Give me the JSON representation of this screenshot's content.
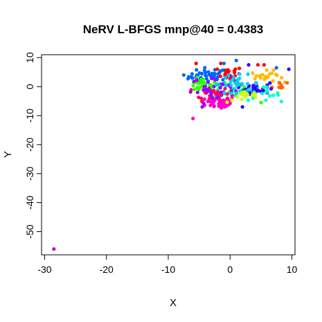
{
  "chart_data": {
    "type": "scatter",
    "title": "NeRV L-BFGS mnp@40 = 0.4383",
    "xlabel": "X",
    "ylabel": "Y",
    "xlim": [
      -30.5,
      10.5
    ],
    "ylim": [
      -58,
      11
    ],
    "x_ticks": [
      -30,
      -20,
      -10,
      0,
      10
    ],
    "x_tick_labels": [
      "-30",
      "-20",
      "-10",
      "0",
      "10"
    ],
    "y_ticks": [
      -50,
      -40,
      -30,
      -20,
      -10,
      0,
      10
    ],
    "y_tick_labels": [
      "-50",
      "-40",
      "-30",
      "-20",
      "-10",
      "0",
      "10"
    ],
    "grid": false,
    "legend": "none",
    "colors": [
      "#FF0000",
      "#FF6600",
      "#FFBB00",
      "#CCFF00",
      "#33FF00",
      "#00FF66",
      "#00FFCC",
      "#00CCFF",
      "#0066FF",
      "#3300FF",
      "#9900FF",
      "#FF00CC",
      "#FF0066"
    ],
    "clusters": [
      {
        "color": "#0066FF",
        "cx": -3.5,
        "cy": 3.5,
        "sx": 1.6,
        "sy": 1.5,
        "n": 45
      },
      {
        "color": "#FF0000",
        "cx": 0,
        "cy": 4.5,
        "sx": 1.0,
        "sy": 1.2,
        "n": 18
      },
      {
        "color": "#33FF00",
        "cx": -4.5,
        "cy": 0.5,
        "sx": 1.3,
        "sy": 1.2,
        "n": 30
      },
      {
        "color": "#00FF66",
        "cx": 1.5,
        "cy": -1.5,
        "sx": 2.0,
        "sy": 1.3,
        "n": 25
      },
      {
        "color": "#FF00CC",
        "cx": -1.5,
        "cy": -5.5,
        "sx": 1.2,
        "sy": 1.1,
        "n": 45
      },
      {
        "color": "#FF0066",
        "cx": -3,
        "cy": -2.5,
        "sx": 1.5,
        "sy": 1.2,
        "n": 28
      },
      {
        "color": "#FFBB00",
        "cx": 6,
        "cy": 3.5,
        "sx": 1.3,
        "sy": 1.0,
        "n": 22
      },
      {
        "color": "#FF6600",
        "cx": 8,
        "cy": 0.5,
        "sx": 0.6,
        "sy": 1.0,
        "n": 8
      },
      {
        "color": "#3300FF",
        "cx": 4,
        "cy": -0.5,
        "sx": 1.2,
        "sy": 1.0,
        "n": 30
      },
      {
        "color": "#9900FF",
        "cx": -2,
        "cy": -1,
        "sx": 2.2,
        "sy": 2.2,
        "n": 30
      },
      {
        "color": "#00CCFF",
        "cx": 1,
        "cy": 1,
        "sx": 2.0,
        "sy": 1.5,
        "n": 28
      },
      {
        "color": "#00FFCC",
        "cx": 5,
        "cy": -2.5,
        "sx": 1.5,
        "sy": 1.2,
        "n": 15
      },
      {
        "color": "#CCFF00",
        "cx": 2.5,
        "cy": -3.5,
        "sx": 1.5,
        "sy": 1.0,
        "n": 15
      }
    ],
    "extra_points": [
      {
        "x": -28.5,
        "y": -56,
        "color": "#CC00CC"
      },
      {
        "x": -6,
        "y": -11,
        "color": "#FF00CC"
      },
      {
        "x": 9.5,
        "y": 6,
        "color": "#3300FF"
      },
      {
        "x": -7.5,
        "y": 4,
        "color": "#0066FF"
      },
      {
        "x": -1,
        "y": 8,
        "color": "#0066FF"
      },
      {
        "x": 1,
        "y": 9,
        "color": "#0066FF"
      },
      {
        "x": -1.5,
        "y": 8,
        "color": "#FF0000"
      },
      {
        "x": -5.5,
        "y": 8,
        "color": "#FF0000"
      },
      {
        "x": 4.5,
        "y": 7.5,
        "color": "#FF0000"
      },
      {
        "x": 5.5,
        "y": 7.5,
        "color": "#FF0000"
      },
      {
        "x": 3,
        "y": 7.5,
        "color": "#3300FF"
      },
      {
        "x": 7.5,
        "y": 6.5,
        "color": "#0066FF"
      },
      {
        "x": 7,
        "y": -3,
        "color": "#00FFCC"
      },
      {
        "x": -4.5,
        "y": -7,
        "color": "#9900FF"
      },
      {
        "x": 5,
        "y": -5.5,
        "color": "#33FF00"
      },
      {
        "x": 2,
        "y": -7,
        "color": "#3300FF"
      }
    ]
  }
}
